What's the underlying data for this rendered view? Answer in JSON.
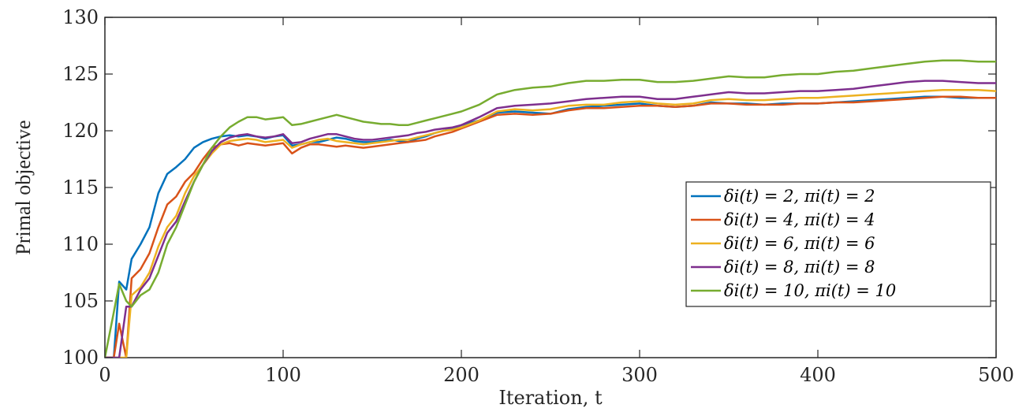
{
  "chart_data": {
    "type": "line",
    "xlabel": "Iteration, t",
    "ylabel": "Primal objective",
    "xlim": [
      0,
      500
    ],
    "ylim": [
      100,
      130
    ],
    "xticks": [
      0,
      100,
      200,
      300,
      400,
      500
    ],
    "yticks": [
      100,
      105,
      110,
      115,
      120,
      125,
      130
    ],
    "grid": false,
    "legend_position": "right",
    "x": [
      0,
      5,
      8,
      12,
      15,
      20,
      25,
      30,
      35,
      40,
      45,
      50,
      55,
      60,
      65,
      70,
      75,
      80,
      85,
      90,
      95,
      100,
      105,
      110,
      115,
      120,
      125,
      130,
      135,
      140,
      145,
      150,
      155,
      160,
      165,
      170,
      175,
      180,
      185,
      190,
      195,
      200,
      210,
      220,
      230,
      240,
      250,
      260,
      270,
      280,
      290,
      300,
      310,
      320,
      330,
      340,
      350,
      360,
      370,
      380,
      390,
      400,
      410,
      420,
      430,
      440,
      450,
      460,
      470,
      480,
      490,
      500
    ],
    "series": [
      {
        "name": "δi(t) = 2, πi(t) = 2",
        "color": "#0072BD",
        "values": [
          100,
          100,
          106.7,
          106.0,
          108.7,
          110.0,
          111.5,
          114.5,
          116.2,
          116.8,
          117.5,
          118.5,
          119.0,
          119.3,
          119.5,
          119.6,
          119.5,
          119.6,
          119.5,
          119.3,
          119.5,
          119.6,
          118.7,
          118.8,
          119.0,
          119.0,
          119.2,
          119.4,
          119.3,
          119.1,
          119.0,
          119.0,
          119.1,
          119.2,
          119.1,
          119.0,
          119.3,
          119.5,
          119.8,
          120.0,
          120.2,
          120.5,
          120.9,
          121.6,
          121.7,
          121.6,
          121.5,
          121.9,
          122.1,
          122.2,
          122.3,
          122.4,
          122.2,
          122.1,
          122.2,
          122.5,
          122.4,
          122.4,
          122.3,
          122.4,
          122.4,
          122.4,
          122.5,
          122.6,
          122.7,
          122.8,
          122.9,
          123.0,
          123.0,
          122.9,
          122.9,
          122.9
        ]
      },
      {
        "name": "δi(t) = 4, πi(t) = 4",
        "color": "#D95319",
        "values": [
          100,
          100,
          103.0,
          100,
          107.0,
          107.8,
          109.2,
          111.5,
          113.5,
          114.2,
          115.5,
          116.3,
          117.5,
          118.5,
          118.8,
          118.9,
          118.7,
          118.9,
          118.8,
          118.7,
          118.8,
          118.9,
          118.0,
          118.5,
          118.8,
          118.8,
          118.7,
          118.6,
          118.7,
          118.6,
          118.5,
          118.6,
          118.7,
          118.8,
          118.9,
          119.0,
          119.1,
          119.2,
          119.5,
          119.7,
          119.9,
          120.2,
          120.8,
          121.4,
          121.5,
          121.4,
          121.5,
          121.8,
          122.0,
          122.0,
          122.1,
          122.2,
          122.2,
          122.1,
          122.2,
          122.4,
          122.4,
          122.3,
          122.3,
          122.3,
          122.4,
          122.4,
          122.5,
          122.5,
          122.6,
          122.7,
          122.8,
          122.9,
          123.0,
          123.0,
          122.9,
          122.9
        ]
      },
      {
        "name": "δi(t) = 6, πi(t) = 6",
        "color": "#EDB120",
        "values": [
          100,
          100,
          100,
          100,
          105.5,
          106.2,
          107.5,
          109.8,
          111.5,
          112.5,
          114.5,
          116.0,
          117.0,
          118.0,
          118.8,
          119.1,
          119.2,
          119.3,
          119.2,
          119.0,
          119.1,
          119.2,
          118.5,
          118.8,
          119.0,
          119.2,
          119.3,
          119.1,
          119.0,
          118.9,
          118.8,
          118.9,
          119.0,
          119.1,
          119.2,
          119.2,
          119.4,
          119.6,
          119.8,
          120.0,
          120.1,
          120.3,
          120.9,
          121.7,
          121.9,
          121.8,
          121.9,
          122.2,
          122.3,
          122.3,
          122.5,
          122.6,
          122.4,
          122.3,
          122.4,
          122.7,
          122.8,
          122.7,
          122.7,
          122.8,
          122.9,
          122.9,
          123.0,
          123.1,
          123.2,
          123.3,
          123.4,
          123.5,
          123.6,
          123.6,
          123.6,
          123.5
        ]
      },
      {
        "name": "δi(t) = 8, πi(t) = 8",
        "color": "#7E2F8E",
        "values": [
          100,
          100,
          100,
          104.5,
          104.5,
          106.0,
          107.0,
          109.0,
          111.0,
          112.0,
          113.8,
          115.5,
          117.0,
          118.2,
          119.0,
          119.4,
          119.6,
          119.7,
          119.5,
          119.4,
          119.5,
          119.7,
          118.9,
          119.0,
          119.3,
          119.5,
          119.7,
          119.7,
          119.5,
          119.3,
          119.2,
          119.2,
          119.3,
          119.4,
          119.5,
          119.6,
          119.8,
          119.9,
          120.1,
          120.2,
          120.3,
          120.5,
          121.2,
          122.0,
          122.2,
          122.3,
          122.4,
          122.6,
          122.8,
          122.9,
          123.0,
          123.0,
          122.8,
          122.8,
          123.0,
          123.2,
          123.4,
          123.3,
          123.3,
          123.4,
          123.5,
          123.5,
          123.6,
          123.7,
          123.9,
          124.1,
          124.3,
          124.4,
          124.4,
          124.3,
          124.2,
          124.2
        ]
      },
      {
        "name": "δi(t) = 10, πi(t) = 10",
        "color": "#77AC30",
        "values": [
          100,
          104.0,
          106.5,
          105.0,
          104.5,
          105.5,
          106.0,
          107.5,
          110.0,
          111.5,
          113.5,
          115.5,
          117.0,
          118.5,
          119.5,
          120.3,
          120.8,
          121.2,
          121.2,
          121.0,
          121.1,
          121.2,
          120.5,
          120.6,
          120.8,
          121.0,
          121.2,
          121.4,
          121.2,
          121.0,
          120.8,
          120.7,
          120.6,
          120.6,
          120.5,
          120.5,
          120.7,
          120.9,
          121.1,
          121.3,
          121.5,
          121.7,
          122.3,
          123.2,
          123.6,
          123.8,
          123.9,
          124.2,
          124.4,
          124.4,
          124.5,
          124.5,
          124.3,
          124.3,
          124.4,
          124.6,
          124.8,
          124.7,
          124.7,
          124.9,
          125.0,
          125.0,
          125.2,
          125.3,
          125.5,
          125.7,
          125.9,
          126.1,
          126.2,
          126.2,
          126.1,
          126.1
        ]
      }
    ]
  }
}
